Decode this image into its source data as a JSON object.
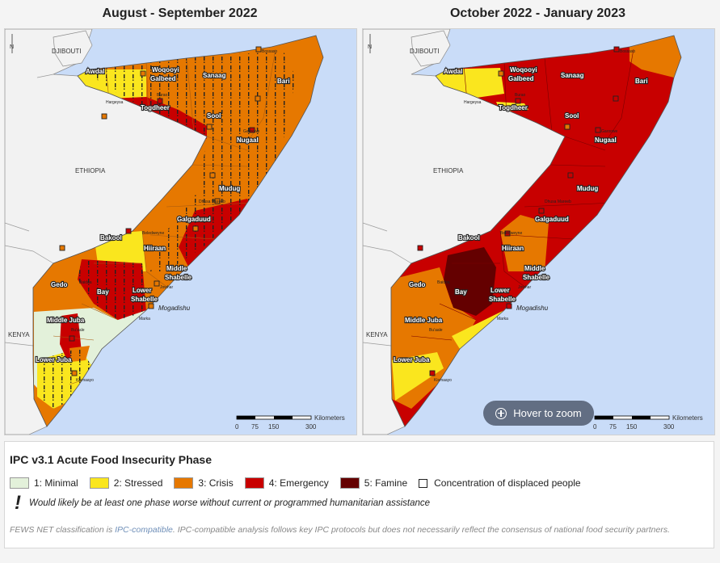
{
  "maps": [
    {
      "title": "August - September 2022",
      "regions": {
        "awdal": "Awdal",
        "woqooyi": "Woqooyi",
        "galbeed": "Galbeed",
        "togdheer": "Togdheer",
        "sanaag": "Sanaag",
        "sool": "Sool",
        "bari": "Bari",
        "nugaal": "Nugaal",
        "mudug": "Mudug",
        "galgaduud": "Galgaduud",
        "bakool": "Bakool",
        "hiiraan": "Hiiraan",
        "middle": "Middle",
        "shabelle": "Shabelle",
        "gedo": "Gedo",
        "bay": "Bay",
        "lower": "Lower",
        "middle_juba_1": "Middle Juba",
        "lower_juba": "Lower Juba"
      },
      "countries": {
        "djibouti": "DJIBOUTI",
        "ethiopia": "ETHIOPIA",
        "kenya": "KENYA"
      },
      "cities": {
        "mogadishu": "Mogadishu",
        "marka": "Marka",
        "kismaayo": "Kismaayo",
        "bossaso": "Bossaso",
        "hargeysa": "Hargeysa",
        "burao": "Burao",
        "garoowe": "Garoowe",
        "dhusamareeb": "Dhusa Mareeb",
        "baidoa": "Baidoa",
        "jowhar": "Jowhar",
        "buaale": "Bu'aale",
        "beledweyne": "Beledweyne"
      },
      "scale": {
        "label": "Kilometers",
        "ticks": [
          "0",
          "75",
          "150",
          "300"
        ]
      }
    },
    {
      "title": "October 2022 - January 2023",
      "scale": {
        "label": "Kilometers",
        "ticks": [
          "0",
          "75",
          "150",
          "300"
        ]
      }
    }
  ],
  "zoom_button": "Hover to zoom",
  "legend": {
    "title": "IPC v3.1 Acute Food Insecurity Phase",
    "phases": [
      {
        "label": "1: Minimal",
        "color": "#e3f1da"
      },
      {
        "label": "2: Stressed",
        "color": "#fae61e"
      },
      {
        "label": "3: Crisis",
        "color": "#e67800"
      },
      {
        "label": "4: Emergency",
        "color": "#c80000"
      },
      {
        "label": "5: Famine",
        "color": "#640000"
      }
    ],
    "displaced": "Concentration of displaced people",
    "assistance_note": "Would likely be at least one phase worse without current or programmed humanitarian assistance",
    "footnote_pre": "FEWS NET classification is ",
    "footnote_link": "IPC-compatible",
    "footnote_post": ". IPC-compatible analysis follows key IPC protocols but does not necessarily reflect the consensus of national food security partners."
  },
  "colors": {
    "water": "#c9dcf8",
    "neighbor": "#f2f2f2",
    "border": "#8a8a8a"
  }
}
